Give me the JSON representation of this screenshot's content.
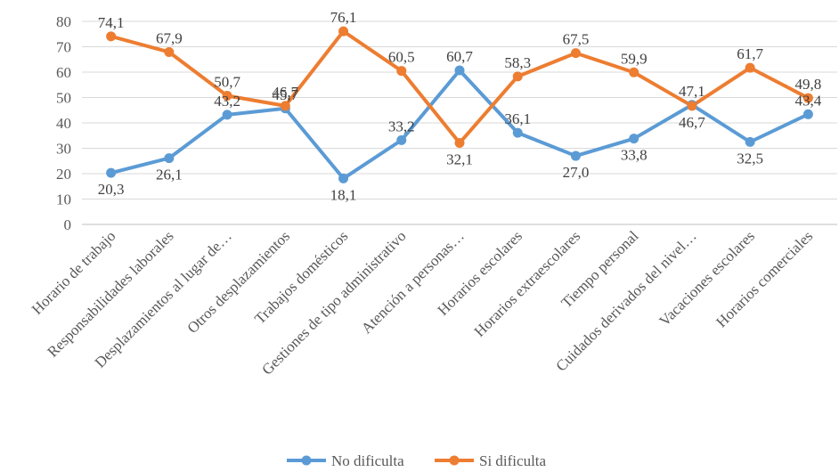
{
  "chart_data": {
    "type": "line",
    "title": "",
    "xlabel": "",
    "ylabel": "",
    "ylim": [
      0,
      80
    ],
    "yticks": [
      0,
      10,
      20,
      30,
      40,
      50,
      60,
      70,
      80
    ],
    "grid": "horizontal",
    "legend_position": "bottom",
    "categories": [
      "Horario de trabajo",
      "Responsabilidades laborales",
      "Desplazamientos al lugar de…",
      "Otros desplazamientos",
      "Trabajos domésticos",
      "Gestiones de tipo administrativo",
      "Atención a personas…",
      "Horarios escolares",
      "Horarios extraescolares",
      "Tiempo personal",
      "Cuidados derivados del nivel…",
      "Vacaciones escolares",
      "Horarios comerciales"
    ],
    "series": [
      {
        "name": "No dificulta",
        "color": "#5B9BD5",
        "values": [
          20.3,
          26.1,
          43.2,
          45.7,
          18.1,
          33.2,
          60.7,
          36.1,
          27.0,
          33.8,
          47.1,
          32.5,
          43.4
        ],
        "labels": [
          "20,3",
          "26,1",
          "43,2",
          "45,7",
          "18,1",
          "33,2",
          "60,7",
          "36,1",
          "27,0",
          "33,8",
          "47,1",
          "32,5",
          "43,4"
        ]
      },
      {
        "name": "Si dificulta",
        "color": "#ED7D31",
        "values": [
          74.1,
          67.9,
          50.7,
          46.7,
          76.1,
          60.5,
          32.1,
          58.3,
          67.5,
          59.9,
          46.7,
          61.7,
          49.8
        ],
        "labels": [
          "74,1",
          "67,9",
          "50,7",
          "46,7",
          "76,1",
          "60,5",
          "32,1",
          "58,3",
          "67,5",
          "59,9",
          "46,7",
          "61,7",
          "49,8"
        ]
      }
    ]
  }
}
